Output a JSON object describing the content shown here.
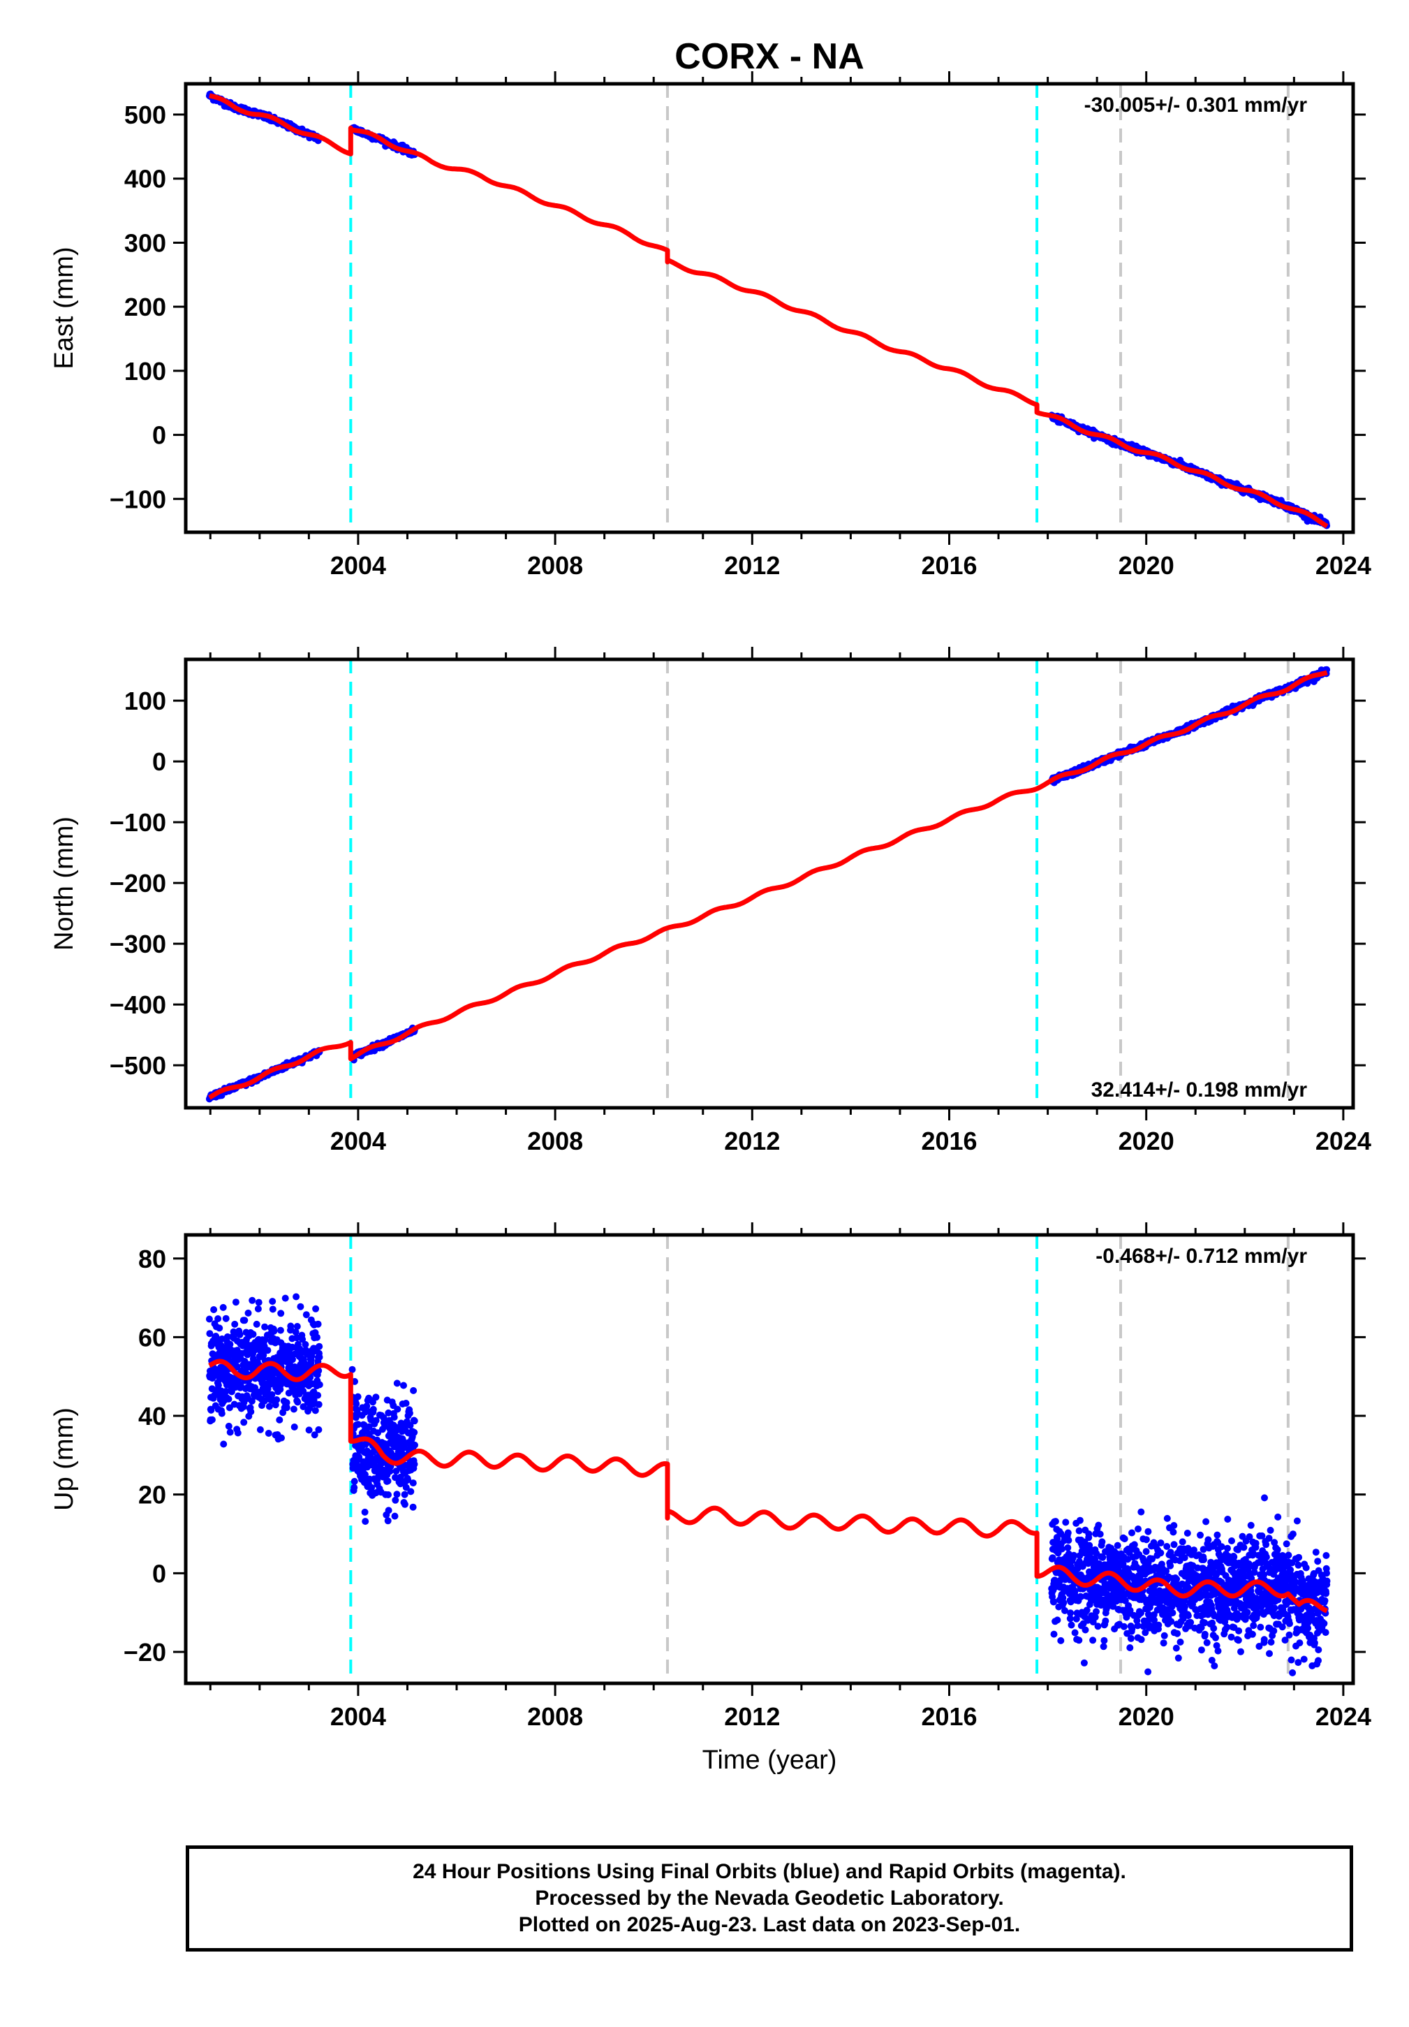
{
  "title": "CORX - NA",
  "footer": {
    "line1": "24 Hour Positions Using Final Orbits (blue) and Rapid Orbits (magenta).",
    "line2": "Processed by the Nevada Geodetic Laboratory.",
    "line3": "Plotted on 2025-Aug-23. Last data on 2023-Sep-01."
  },
  "colors": {
    "data": "#0000ff",
    "model": "#ff0000",
    "equipment_change": "#00ffff",
    "earthquake": "#c8c8c8"
  },
  "chart_data": [
    {
      "type": "scatter",
      "ylabel": "East (mm)",
      "xlabel": "",
      "xlim": [
        2000.5,
        2024.2
      ],
      "ylim": [
        -152,
        548
      ],
      "xticks": [
        2004,
        2008,
        2012,
        2016,
        2020,
        2024
      ],
      "yticks": [
        -100,
        0,
        100,
        200,
        300,
        400,
        500
      ],
      "rate": "-30.005+/- 0.301 mm/yr",
      "rate_position": "top",
      "equipment_changes": [
        2003.85,
        2017.78
      ],
      "earthquakes": [
        2010.28,
        2019.48,
        2022.88
      ],
      "data_segments": [
        [
          2000.98,
          2003.22
        ],
        [
          2003.88,
          2005.15
        ],
        [
          2018.08,
          2023.67
        ]
      ],
      "model_points": [
        [
          2000.98,
          530
        ],
        [
          2001.5,
          511
        ],
        [
          2002.0,
          500
        ],
        [
          2002.5,
          485
        ],
        [
          2003.22,
          462
        ],
        [
          2003.85,
          441
        ],
        [
          2003.85,
          479
        ],
        [
          2004.5,
          460
        ],
        [
          2005.5,
          426
        ],
        [
          2006.5,
          404
        ],
        [
          2007.5,
          373
        ],
        [
          2008.5,
          343
        ],
        [
          2009.5,
          313
        ],
        [
          2010.28,
          285
        ],
        [
          2010.28,
          270
        ],
        [
          2011.0,
          252
        ],
        [
          2012.0,
          224
        ],
        [
          2013.0,
          193
        ],
        [
          2014.0,
          161
        ],
        [
          2015.0,
          130
        ],
        [
          2016.0,
          103
        ],
        [
          2017.0,
          71
        ],
        [
          2017.78,
          50
        ],
        [
          2017.78,
          38
        ],
        [
          2018.5,
          15
        ],
        [
          2019.48,
          -14
        ],
        [
          2020.5,
          -41
        ],
        [
          2021.5,
          -72
        ],
        [
          2022.5,
          -100
        ],
        [
          2022.88,
          -112
        ],
        [
          2023.67,
          -140
        ]
      ]
    },
    {
      "type": "scatter",
      "ylabel": "North (mm)",
      "xlabel": "",
      "xlim": [
        2000.5,
        2024.2
      ],
      "ylim": [
        -570,
        168
      ],
      "xticks": [
        2004,
        2008,
        2012,
        2016,
        2020,
        2024
      ],
      "yticks": [
        -500,
        -400,
        -300,
        -200,
        -100,
        0,
        100
      ],
      "rate": "32.414+/- 0.198 mm/yr",
      "rate_position": "bottom",
      "equipment_changes": [
        2003.85,
        2017.78
      ],
      "earthquakes": [
        2010.28,
        2019.48,
        2022.88
      ],
      "data_segments": [
        [
          2000.98,
          2003.22
        ],
        [
          2003.88,
          2005.15
        ],
        [
          2018.08,
          2023.67
        ]
      ],
      "model_points": [
        [
          2000.98,
          -553
        ],
        [
          2001.5,
          -536
        ],
        [
          2002.0,
          -520
        ],
        [
          2002.5,
          -502
        ],
        [
          2003.22,
          -478
        ],
        [
          2003.85,
          -460
        ],
        [
          2003.85,
          -487
        ],
        [
          2004.5,
          -465
        ],
        [
          2005.5,
          -430
        ],
        [
          2006.5,
          -398
        ],
        [
          2007.5,
          -366
        ],
        [
          2008.5,
          -332
        ],
        [
          2009.5,
          -300
        ],
        [
          2010.28,
          -277
        ],
        [
          2011.0,
          -255
        ],
        [
          2012.0,
          -224
        ],
        [
          2013.0,
          -192
        ],
        [
          2014.0,
          -158
        ],
        [
          2015.0,
          -127
        ],
        [
          2016.0,
          -95
        ],
        [
          2017.0,
          -63
        ],
        [
          2017.78,
          -42
        ],
        [
          2018.5,
          -19
        ],
        [
          2019.48,
          13
        ],
        [
          2020.5,
          44
        ],
        [
          2021.5,
          77
        ],
        [
          2022.5,
          110
        ],
        [
          2022.88,
          121
        ],
        [
          2023.67,
          149
        ]
      ]
    },
    {
      "type": "scatter",
      "ylabel": "Up (mm)",
      "xlabel": "Time (year)",
      "xlim": [
        2000.5,
        2024.2
      ],
      "ylim": [
        -28,
        86
      ],
      "xticks": [
        2004,
        2008,
        2012,
        2016,
        2020,
        2024
      ],
      "yticks": [
        -20,
        0,
        20,
        40,
        60,
        80
      ],
      "rate": "-0.468+/- 0.712 mm/yr",
      "rate_position": "top",
      "equipment_changes": [
        2003.85,
        2017.78
      ],
      "earthquakes": [
        2010.28,
        2019.48,
        2022.88
      ],
      "data_segments": [
        [
          2000.98,
          2003.22
        ],
        [
          2003.88,
          2005.15
        ],
        [
          2018.08,
          2023.67
        ]
      ],
      "model_points": [
        [
          2000.98,
          53
        ],
        [
          2001.5,
          51
        ],
        [
          2002.0,
          52
        ],
        [
          2002.5,
          51
        ],
        [
          2003.22,
          51
        ],
        [
          2003.85,
          52
        ],
        [
          2003.85,
          35
        ],
        [
          2004.5,
          30
        ],
        [
          2005.5,
          29
        ],
        [
          2006.5,
          29
        ],
        [
          2007.5,
          28
        ],
        [
          2008.5,
          28
        ],
        [
          2009.5,
          27
        ],
        [
          2010.28,
          26
        ],
        [
          2010.28,
          14
        ],
        [
          2011.0,
          15
        ],
        [
          2012.0,
          14
        ],
        [
          2013.0,
          13
        ],
        [
          2014.0,
          13
        ],
        [
          2015.0,
          12
        ],
        [
          2016.0,
          12
        ],
        [
          2017.0,
          11
        ],
        [
          2017.78,
          12
        ],
        [
          2017.78,
          1
        ],
        [
          2018.5,
          -1
        ],
        [
          2019.48,
          -2
        ],
        [
          2020.5,
          -4
        ],
        [
          2021.5,
          -4
        ],
        [
          2022.5,
          -4
        ],
        [
          2022.88,
          -4
        ],
        [
          2023.1,
          -9
        ],
        [
          2023.67,
          -8
        ]
      ]
    }
  ]
}
